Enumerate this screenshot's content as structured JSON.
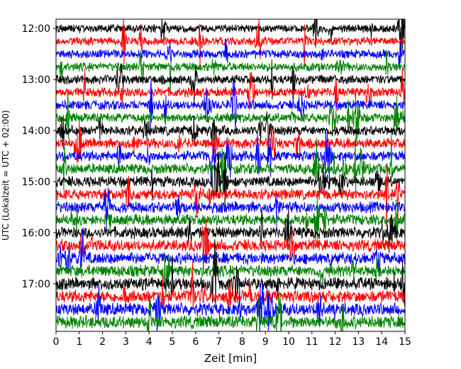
{
  "chart_data": {
    "type": "line",
    "title": "",
    "xlabel": "Zeit  [min]",
    "ylabel": "UTC (Lokalzeit = UTC + 02:00)",
    "xlim": [
      0,
      15
    ],
    "ylim_time": [
      "11:49",
      "17:56"
    ],
    "x_ticks": [
      "0",
      "1",
      "2",
      "3",
      "4",
      "5",
      "6",
      "7",
      "8",
      "9",
      "10",
      "11",
      "12",
      "13",
      "14",
      "15"
    ],
    "y_ticks": [
      {
        "value": "12:00",
        "label": "12:00"
      },
      {
        "value": "13:00",
        "label": "13:00"
      },
      {
        "value": "14:00",
        "label": "14:00"
      },
      {
        "value": "15:00",
        "label": "15:00"
      },
      {
        "value": "16:00",
        "label": "16:00"
      },
      {
        "value": "17:00",
        "label": "17:00"
      }
    ],
    "grid": false,
    "trace_interval_min": 15,
    "trace_colors": [
      "#000000",
      "#ff0000",
      "#0000ff",
      "#008000"
    ],
    "trace_start_times": [
      "12:00",
      "12:15",
      "12:30",
      "12:45",
      "13:00",
      "13:15",
      "13:30",
      "13:45",
      "14:00",
      "14:15",
      "14:30",
      "14:45",
      "15:00",
      "15:15",
      "15:30",
      "15:45",
      "16:00",
      "16:15",
      "16:30",
      "16:45",
      "17:00",
      "17:15",
      "17:30",
      "17:45"
    ]
  }
}
